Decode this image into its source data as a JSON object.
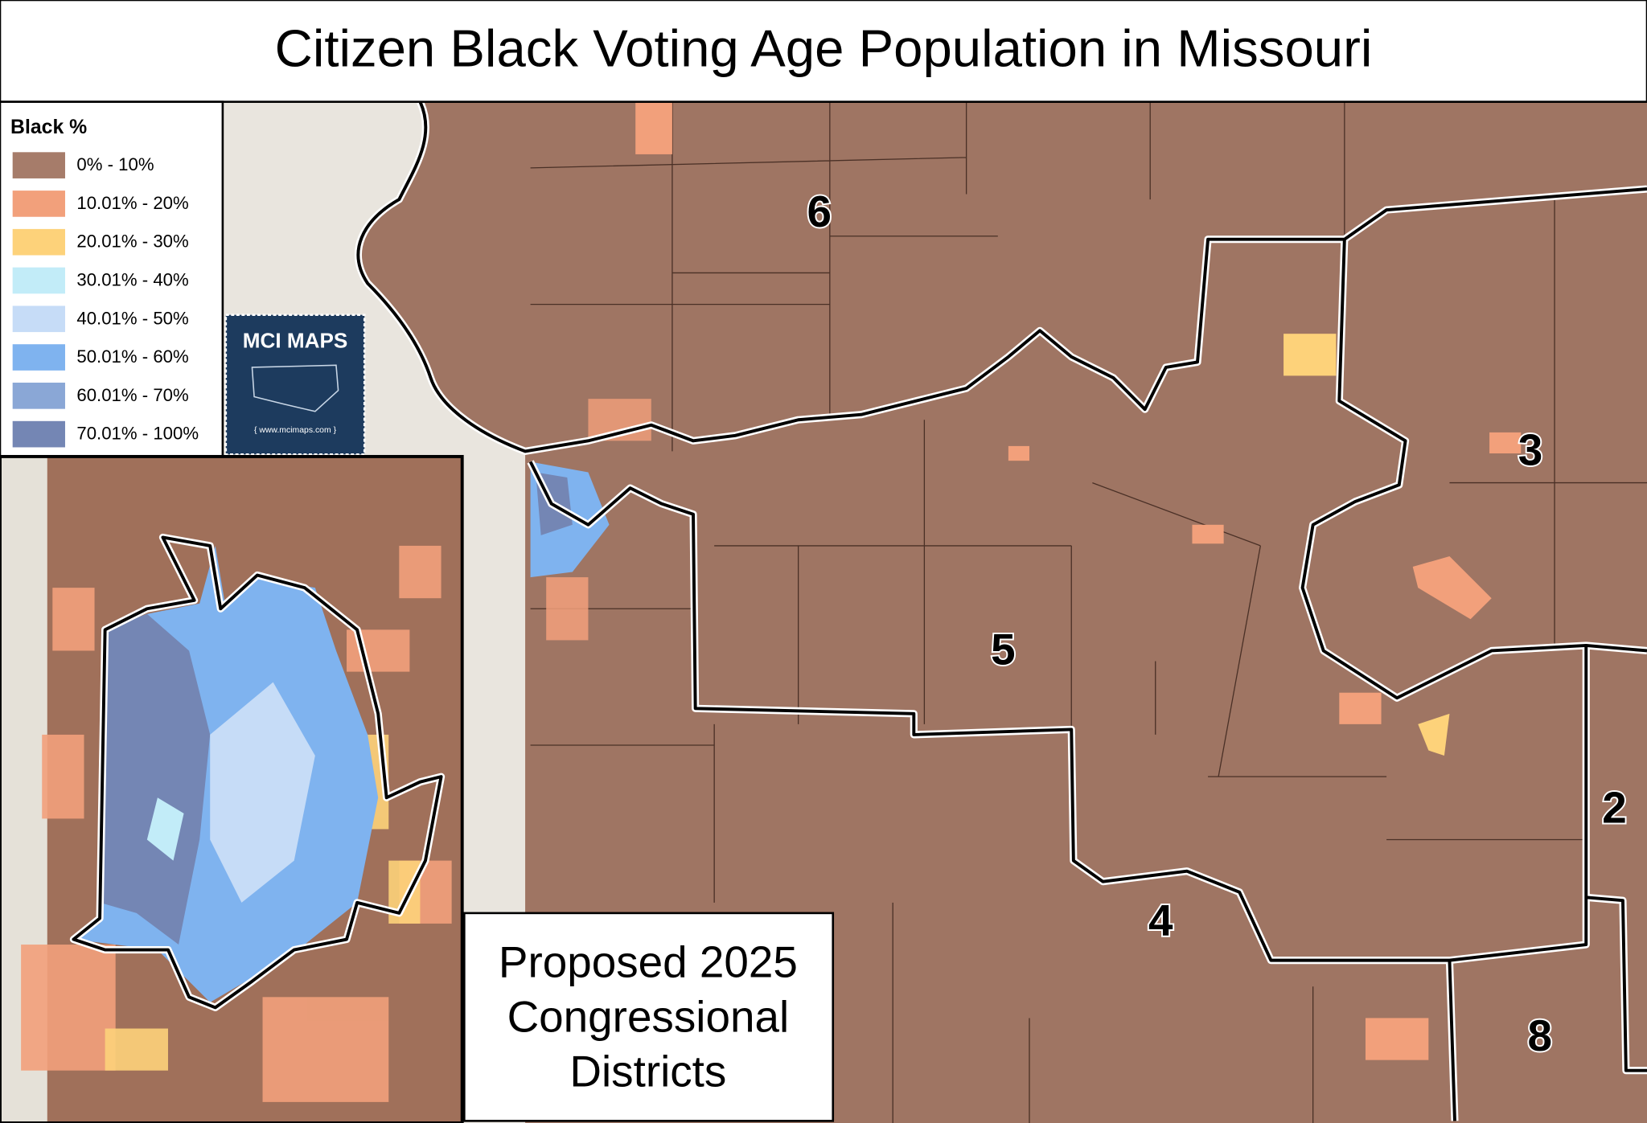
{
  "header": {
    "title": "Citizen Black Voting Age Population in Missouri"
  },
  "legend": {
    "title": "Black  %",
    "items": [
      {
        "label": "0% - 10%",
        "color": "#a67c6a"
      },
      {
        "label": "10.01% - 20%",
        "color": "#f2a07b"
      },
      {
        "label": "20.01% - 30%",
        "color": "#fdd27a"
      },
      {
        "label": "30.01% - 40%",
        "color": "#c2ecf8"
      },
      {
        "label": "40.01% - 50%",
        "color": "#c6dcf7"
      },
      {
        "label": "50.01% - 60%",
        "color": "#7fb3ef"
      },
      {
        "label": "60.01% - 70%",
        "color": "#8aa7d6"
      },
      {
        "label": "70.01% - 100%",
        "color": "#7486b4"
      }
    ]
  },
  "logo": {
    "name": "MCI MAPS",
    "url": "{ www.mcimaps.com }"
  },
  "districts": [
    "6",
    "5",
    "3",
    "2",
    "4",
    "8"
  ],
  "caption": {
    "lines": [
      "Proposed 2025",
      "Congressional",
      "Districts"
    ]
  }
}
